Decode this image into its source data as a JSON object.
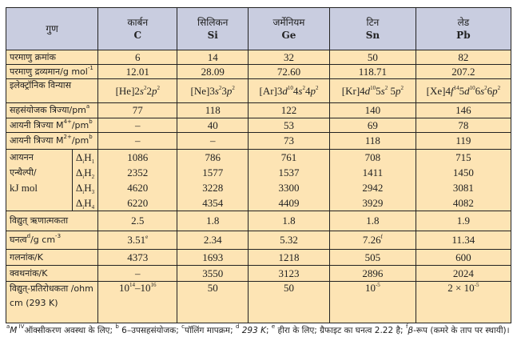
{
  "colors": {
    "header_bg": "#c9cde0",
    "body_bg": "#fde4b4"
  },
  "header": {
    "property": "गुण",
    "elements": [
      {
        "name": "कार्बन",
        "symbol": "C"
      },
      {
        "name": "सिलिकन",
        "symbol": "Si"
      },
      {
        "name": "जर्मेनियम",
        "symbol": "Ge"
      },
      {
        "name": "टिन",
        "symbol": "Sn"
      },
      {
        "name": "लेड",
        "symbol": "Pb"
      }
    ]
  },
  "rows": [
    {
      "label": "परमाणु क्रमांक",
      "values": [
        "6",
        "14",
        "32",
        "50",
        "82"
      ]
    },
    {
      "label": [
        {
          "t": "परमाणु द्रव्यमान/g mol"
        },
        {
          "t": "-1",
          "s": "sup"
        }
      ],
      "values": [
        "12.01",
        "28.09",
        "72.60",
        "118.71",
        "207.2"
      ]
    },
    {
      "label": "इलेक्ट्रॉनिक विन्यास",
      "values": [
        [
          {
            "t": "[He]2"
          },
          {
            "t": "s",
            "s": "i"
          },
          {
            "t": "2",
            "s": "sup"
          },
          {
            "t": "2"
          },
          {
            "t": "p",
            "s": "i"
          },
          {
            "t": "2",
            "s": "sup"
          }
        ],
        [
          {
            "t": "[Ne]3"
          },
          {
            "t": "s",
            "s": "i"
          },
          {
            "t": "2",
            "s": "sup"
          },
          {
            "t": "3"
          },
          {
            "t": "p",
            "s": "i"
          },
          {
            "t": "2",
            "s": "sup"
          }
        ],
        [
          {
            "t": "[Ar]3"
          },
          {
            "t": "d",
            "s": "i"
          },
          {
            "t": "10",
            "s": "sup"
          },
          {
            "t": "4"
          },
          {
            "t": "s",
            "s": "i"
          },
          {
            "t": "2",
            "s": "sup"
          },
          {
            "t": "4"
          },
          {
            "t": "p",
            "s": "i"
          },
          {
            "t": "2",
            "s": "sup"
          }
        ],
        [
          {
            "t": "[Kr]4"
          },
          {
            "t": "d",
            "s": "i"
          },
          {
            "t": "10",
            "s": "sup"
          },
          {
            "t": "5"
          },
          {
            "t": "s",
            "s": "i"
          },
          {
            "t": "2",
            "s": "sup"
          },
          {
            "t": " 5"
          },
          {
            "t": "p",
            "s": "i"
          },
          {
            "t": "2",
            "s": "sup"
          }
        ],
        [
          {
            "t": "[Xe]4"
          },
          {
            "t": "f",
            "s": "i"
          },
          {
            "t": "14",
            "s": "sup"
          },
          {
            "t": "5"
          },
          {
            "t": "d",
            "s": "i"
          },
          {
            "t": "10",
            "s": "sup"
          },
          {
            "t": "6"
          },
          {
            "t": "s",
            "s": "i"
          },
          {
            "t": "2",
            "s": "sup"
          },
          {
            "t": "6"
          },
          {
            "t": "p",
            "s": "i"
          },
          {
            "t": "2",
            "s": "sup"
          }
        ]
      ]
    },
    {
      "label": [
        {
          "t": "सहसंयोजक त्रिज्या/pm"
        },
        {
          "t": "a",
          "s": "sup"
        }
      ],
      "values": [
        "77",
        "118",
        "122",
        "140",
        "146"
      ]
    },
    {
      "label": [
        {
          "t": "आयनी त्रिज्या M"
        },
        {
          "t": "4+",
          "s": "sup"
        },
        {
          "t": "/pm"
        },
        {
          "t": "b",
          "s": "sup"
        }
      ],
      "values": [
        "–",
        "40",
        "53",
        "69",
        "78"
      ]
    },
    {
      "label": [
        {
          "t": "आयनी त्रिज्या M"
        },
        {
          "t": "2+",
          "s": "sup"
        },
        {
          "t": "/pm"
        },
        {
          "t": "b",
          "s": "sup"
        }
      ],
      "values": [
        "–",
        "–",
        "73",
        "118",
        "119"
      ]
    },
    {
      "label": "विद्युत् ऋणात्मकता",
      "label_sup": "c",
      "values": [
        "2.5",
        "1.8",
        "1.8",
        "1.8",
        "1.9"
      ]
    },
    {
      "label": [
        {
          "t": "घनत्व"
        },
        {
          "t": "d",
          "s": "sup"
        },
        {
          "t": "/g cm"
        },
        {
          "t": "-3",
          "s": "sup"
        }
      ],
      "values": [
        [
          {
            "t": "3.51"
          },
          {
            "t": "e",
            "s": "sup"
          }
        ],
        "2.34",
        "5.32",
        [
          {
            "t": "7.26"
          },
          {
            "t": "f",
            "s": "sup"
          }
        ],
        "11.34"
      ]
    },
    {
      "label": "गलनांक/K",
      "values": [
        "4373",
        "1693",
        "1218",
        "505",
        "600"
      ]
    },
    {
      "label": "क्वथनांक/K",
      "values": [
        "–",
        "3550",
        "3123",
        "2896",
        "2024"
      ]
    },
    {
      "label": "विद्युत्-प्रतिरोधकता /ohm cm (293 K)",
      "values": [
        [
          {
            "t": "10"
          },
          {
            "t": "14",
            "s": "sup"
          },
          {
            "t": "–10"
          },
          {
            "t": "16",
            "s": "sup"
          }
        ],
        "50",
        "50",
        [
          {
            "t": "10"
          },
          {
            "t": "-5",
            "s": "sup"
          }
        ],
        [
          {
            "t": "2 × 10"
          },
          {
            "t": "-5",
            "s": "sup"
          }
        ]
      ]
    }
  ],
  "ionization": {
    "label_lines": [
      "आयनन",
      "एन्थैल्पी/",
      "kJ mol"
    ],
    "label_sup": "-1",
    "subs": [
      "1",
      "2",
      "3",
      "4"
    ],
    "values": [
      [
        "1086",
        "786",
        "761",
        "708",
        "715"
      ],
      [
        "2352",
        "1577",
        "1537",
        "1411",
        "1450"
      ],
      [
        "4620",
        "3228",
        "3300",
        "2942",
        "3081"
      ],
      [
        "6220",
        "4354",
        "4409",
        "3929",
        "4082"
      ]
    ]
  },
  "footnote": [
    {
      "t": "a",
      "s": "sup"
    },
    {
      "t": "M",
      "s": "i"
    },
    {
      "t": " IV",
      "s": "sup"
    },
    {
      "t": "ऑक्सीकरण अवस्था के लिए; "
    },
    {
      "t": "b",
      "s": "sup"
    },
    {
      "t": " 6–उपसहसंयोजक; "
    },
    {
      "t": "c",
      "s": "sup"
    },
    {
      "t": "पॉलिंग मापक्रम; "
    },
    {
      "t": "d",
      "s": "sup"
    },
    {
      "t": " 293 K",
      "s": "i"
    },
    {
      "t": "; "
    },
    {
      "t": "e",
      "s": "sup"
    },
    {
      "t": " हीरा के लिए; ग्रैफाइट का घनत्व 2.22 है; "
    },
    {
      "t": "f",
      "s": "sup"
    },
    {
      "t": "β",
      "s": "i"
    },
    {
      "t": "-रूप (कमरे के ताप पर स्थायी)।"
    }
  ]
}
